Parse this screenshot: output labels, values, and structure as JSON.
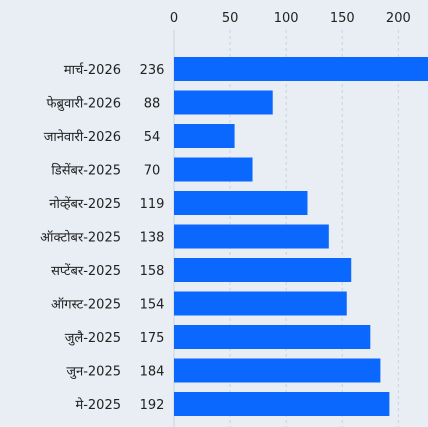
{
  "chart_data": {
    "type": "bar",
    "orientation": "horizontal",
    "categories": [
      "मार्च-2026",
      "फेब्रुवारी-2026",
      "जानेवारी-2026",
      "डिसेंबर-2025",
      "नोव्हेंबर-2025",
      "ऑक्टोबर-2025",
      "सप्टेंबर-2025",
      "ऑगस्ट-2025",
      "जुलै-2025",
      "जुन-2025",
      "मे-2025"
    ],
    "values": [
      236,
      88,
      54,
      70,
      119,
      138,
      158,
      154,
      175,
      184,
      192
    ],
    "xlim": [
      0,
      230
    ],
    "xticks": [
      0,
      50,
      100,
      150,
      200
    ],
    "xaxis_position": "top",
    "grid": true,
    "bar_color": "#0a68ff",
    "gridline_color": "#c9d3de",
    "background_color": "#e8eef4"
  }
}
